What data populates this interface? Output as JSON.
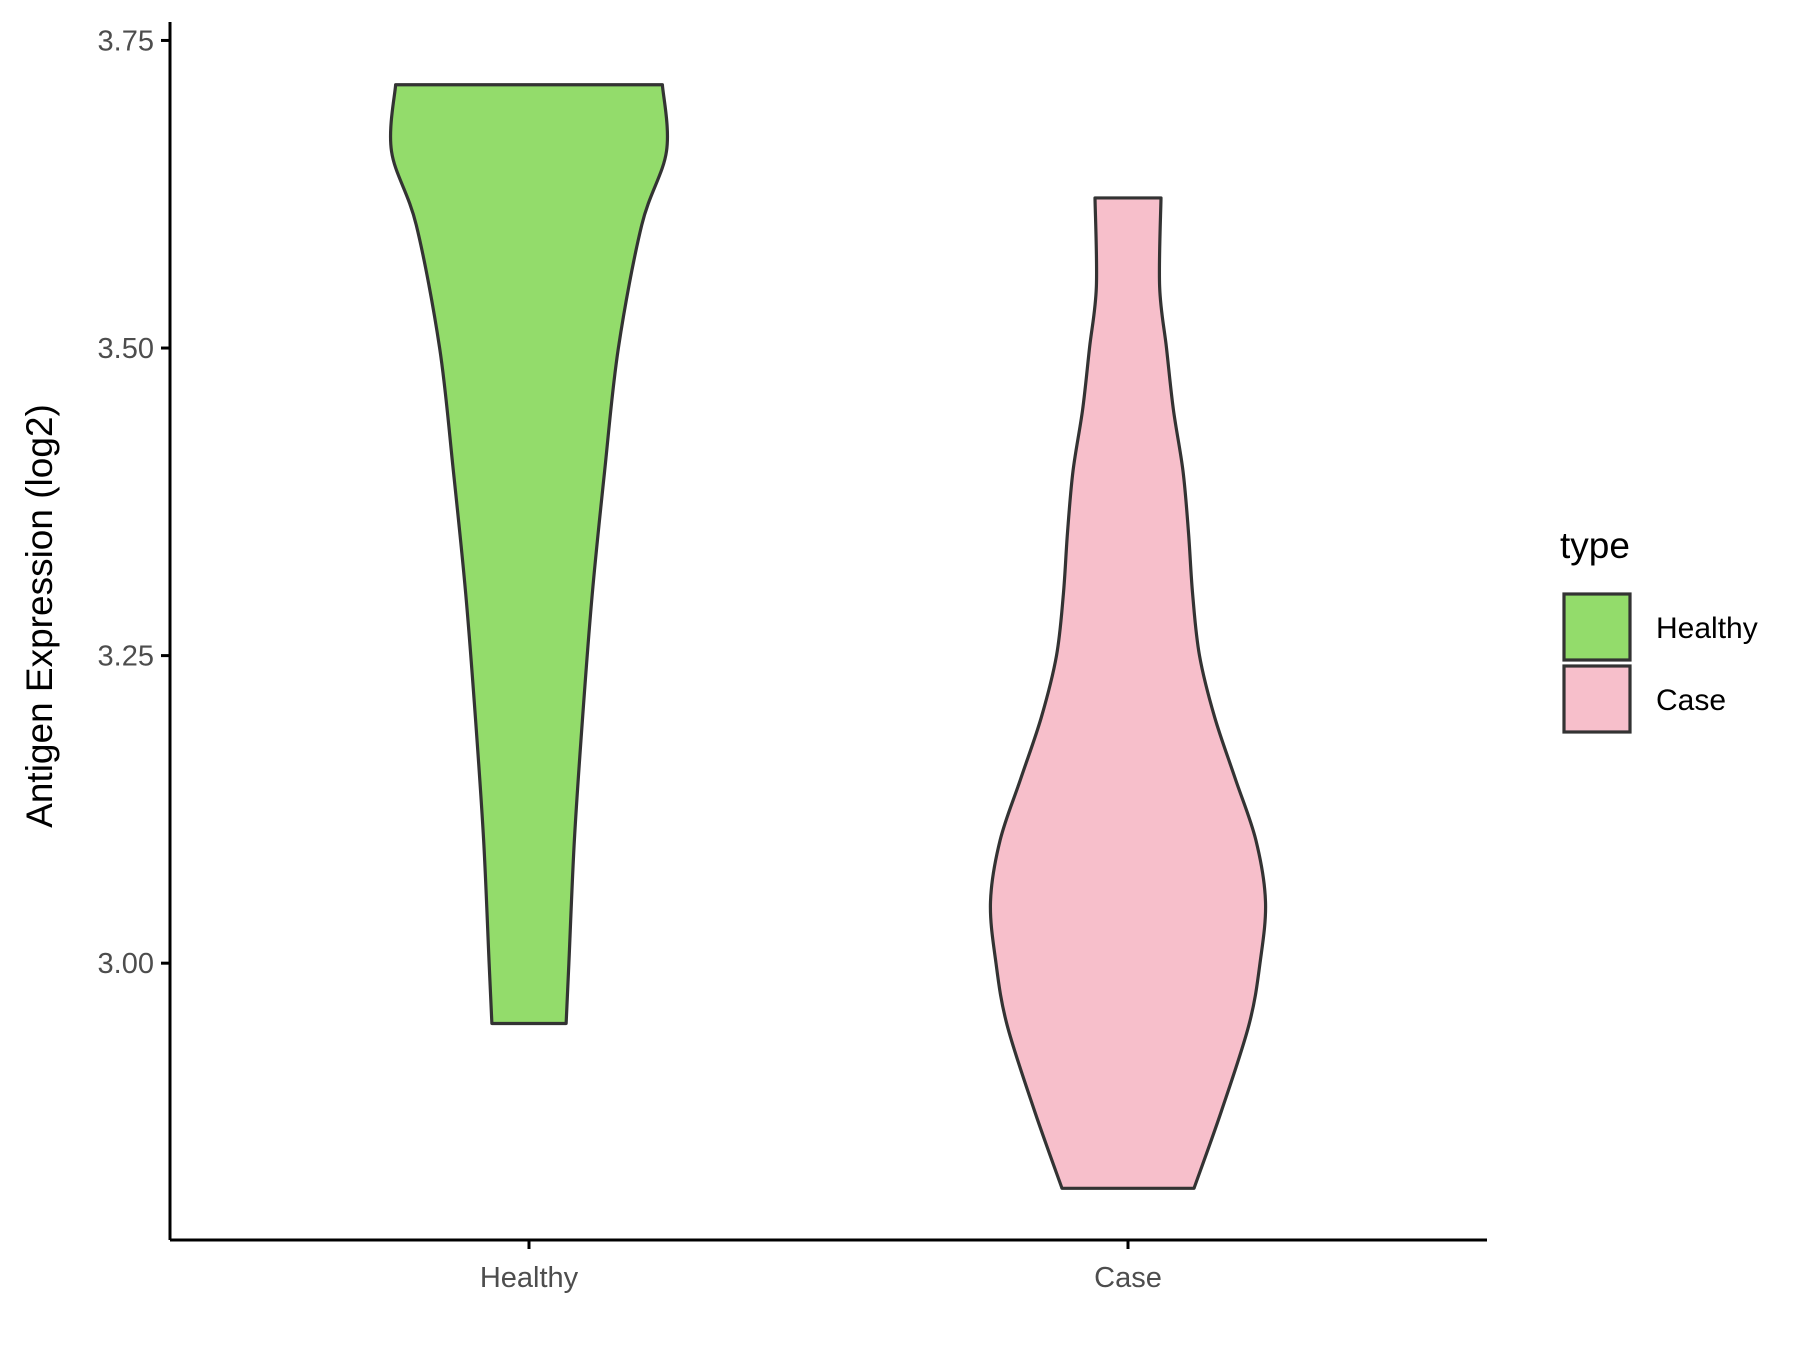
{
  "chart_data": {
    "type": "violin",
    "title": "",
    "xlabel": "",
    "ylabel": "Antigen Expression (log2)",
    "ylim": [
      2.775,
      3.765
    ],
    "yticks": [
      "3.00",
      "3.25",
      "3.50",
      "3.75"
    ],
    "ytick_values": [
      3.0,
      3.25,
      3.5,
      3.75
    ],
    "categories": [
      "Healthy",
      "Case"
    ],
    "legend": {
      "title": "type",
      "position": "right",
      "entries": [
        {
          "label": "Healthy",
          "color": "#93dc6b"
        },
        {
          "label": "Case",
          "color": "#f7bfcb"
        }
      ]
    },
    "grid": false,
    "series": [
      {
        "name": "Healthy",
        "color": "#93dc6b",
        "min": 2.951,
        "max": 3.714,
        "density_profile": [
          [
            2.951,
            0.27
          ],
          [
            3.0,
            0.29
          ],
          [
            3.1,
            0.33
          ],
          [
            3.2,
            0.39
          ],
          [
            3.3,
            0.46
          ],
          [
            3.4,
            0.55
          ],
          [
            3.5,
            0.65
          ],
          [
            3.6,
            0.82
          ],
          [
            3.66,
            1.0
          ],
          [
            3.714,
            0.97
          ]
        ]
      },
      {
        "name": "Case",
        "color": "#f7bfcb",
        "min": 2.817,
        "max": 3.622,
        "density_profile": [
          [
            2.817,
            0.48
          ],
          [
            2.88,
            0.68
          ],
          [
            2.95,
            0.88
          ],
          [
            3.0,
            0.96
          ],
          [
            3.05,
            1.0
          ],
          [
            3.1,
            0.93
          ],
          [
            3.15,
            0.78
          ],
          [
            3.2,
            0.63
          ],
          [
            3.25,
            0.52
          ],
          [
            3.3,
            0.47
          ],
          [
            3.35,
            0.44
          ],
          [
            3.4,
            0.4
          ],
          [
            3.45,
            0.33
          ],
          [
            3.5,
            0.28
          ],
          [
            3.55,
            0.23
          ],
          [
            3.622,
            0.24
          ]
        ]
      }
    ]
  }
}
